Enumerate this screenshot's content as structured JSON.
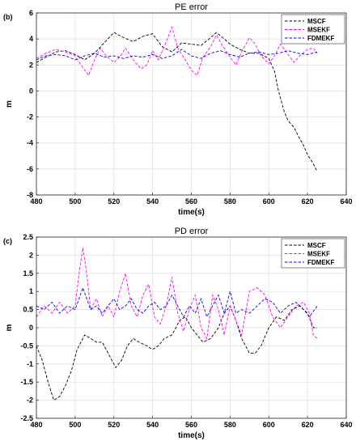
{
  "chart_data": [
    {
      "type": "line",
      "panel_label": "(b)",
      "title": "PE error",
      "xlabel": "time(s)",
      "ylabel": "m",
      "xlim": [
        480,
        640
      ],
      "ylim": [
        -8,
        6
      ],
      "xticks": [
        480,
        500,
        520,
        540,
        560,
        580,
        600,
        620,
        640
      ],
      "yticks": [
        -8,
        -6,
        -4,
        -2,
        0,
        2,
        4,
        6
      ],
      "grid": true,
      "legend_position": "top-right",
      "series": [
        {
          "name": "MSCF",
          "color": "#000000",
          "x": [
            480,
            485,
            490,
            495,
            500,
            505,
            510,
            515,
            520,
            525,
            530,
            535,
            540,
            545,
            550,
            555,
            560,
            565,
            570,
            573,
            577,
            580,
            585,
            590,
            595,
            600,
            603,
            605,
            608,
            610,
            613,
            615,
            618,
            620,
            623,
            625
          ],
          "y": [
            2.2,
            2.6,
            3.0,
            3.1,
            2.8,
            2.4,
            2.9,
            3.7,
            4.5,
            4.1,
            3.8,
            4.2,
            4.4,
            3.4,
            3.0,
            3.7,
            3.6,
            3.5,
            4.1,
            4.5,
            4.0,
            3.6,
            3.2,
            2.9,
            2.9,
            2.5,
            1.5,
            0.0,
            -1.6,
            -2.3,
            -2.8,
            -3.4,
            -4.2,
            -4.9,
            -5.6,
            -6.2
          ]
        },
        {
          "name": "MSEKF",
          "color": "#ff00ff",
          "x": [
            480,
            485,
            490,
            495,
            500,
            503,
            507,
            510,
            513,
            516,
            520,
            523,
            526,
            530,
            534,
            537,
            540,
            543,
            546,
            550,
            553,
            556,
            560,
            563,
            566,
            570,
            573,
            576,
            580,
            583,
            586,
            590,
            593,
            596,
            600,
            603,
            606,
            610,
            613,
            616,
            620,
            623,
            625
          ],
          "y": [
            2.5,
            2.9,
            3.2,
            3.0,
            2.7,
            2.0,
            1.2,
            2.4,
            3.3,
            2.7,
            2.2,
            2.6,
            3.3,
            2.4,
            1.7,
            2.0,
            3.1,
            2.4,
            3.4,
            4.9,
            3.3,
            2.6,
            1.6,
            1.2,
            2.6,
            3.4,
            4.3,
            3.5,
            2.6,
            2.0,
            3.0,
            4.1,
            3.6,
            2.7,
            2.1,
            2.7,
            3.6,
            2.8,
            2.2,
            2.7,
            3.2,
            3.3,
            2.9
          ]
        },
        {
          "name": "FDMEKF",
          "color": "#0000ff",
          "x": [
            480,
            485,
            490,
            495,
            500,
            505,
            510,
            515,
            520,
            525,
            530,
            535,
            540,
            545,
            550,
            555,
            560,
            565,
            570,
            575,
            580,
            585,
            590,
            595,
            600,
            605,
            610,
            615,
            620,
            625
          ],
          "y": [
            2.4,
            2.7,
            2.8,
            2.7,
            2.4,
            2.7,
            2.9,
            2.6,
            2.7,
            2.5,
            2.7,
            2.6,
            2.8,
            2.5,
            2.7,
            3.2,
            2.7,
            2.5,
            2.9,
            3.1,
            2.8,
            2.6,
            2.9,
            3.0,
            2.8,
            2.9,
            3.1,
            2.9,
            2.8,
            3.0
          ]
        }
      ]
    },
    {
      "type": "line",
      "panel_label": "(c)",
      "title": "PD error",
      "xlabel": "time(s)",
      "ylabel": "m",
      "xlim": [
        480,
        640
      ],
      "ylim": [
        -2.5,
        2.5
      ],
      "xticks": [
        480,
        500,
        520,
        540,
        560,
        580,
        600,
        620,
        640
      ],
      "yticks": [
        -2.5,
        -2,
        -1.5,
        -1,
        -0.5,
        0,
        0.5,
        1,
        1.5,
        2,
        2.5
      ],
      "grid": true,
      "legend_position": "top-right",
      "series": [
        {
          "name": "MSCF",
          "color": "#000000",
          "x": [
            480,
            483,
            486,
            489,
            492,
            495,
            498,
            501,
            505,
            508,
            511,
            514,
            517,
            521,
            524,
            527,
            530,
            533,
            537,
            540,
            543,
            546,
            550,
            554,
            557,
            560,
            563,
            566,
            570,
            574,
            577,
            580,
            583,
            586,
            590,
            593,
            596,
            600,
            604,
            608,
            612,
            616,
            620,
            623,
            625
          ],
          "y": [
            -0.5,
            -0.9,
            -1.5,
            -2.0,
            -1.9,
            -1.6,
            -1.2,
            -0.6,
            -0.2,
            -0.3,
            -0.4,
            -0.4,
            -0.7,
            -1.1,
            -0.9,
            -0.5,
            -0.3,
            -0.4,
            -0.5,
            -0.6,
            -0.5,
            -0.3,
            -0.2,
            0.2,
            0.3,
            0.0,
            -0.2,
            -0.4,
            -0.3,
            0.0,
            0.4,
            0.6,
            0.2,
            -0.3,
            -0.7,
            -0.7,
            -0.5,
            0.0,
            0.3,
            0.2,
            0.5,
            0.6,
            0.4,
            0.0,
            0.0
          ]
        },
        {
          "name": "MSEKF",
          "color": "#ff00ff",
          "x": [
            480,
            484,
            488,
            492,
            496,
            500,
            502,
            504,
            506,
            508,
            511,
            514,
            517,
            520,
            523,
            526,
            529,
            532,
            535,
            538,
            541,
            544,
            547,
            550,
            553,
            556,
            559,
            562,
            565,
            568,
            571,
            574,
            577,
            580,
            583,
            586,
            590,
            594,
            598,
            602,
            606,
            610,
            614,
            618,
            621,
            623,
            625
          ],
          "y": [
            0.3,
            0.6,
            0.4,
            0.7,
            0.4,
            0.6,
            1.5,
            2.2,
            1.5,
            0.5,
            0.8,
            0.3,
            0.6,
            0.3,
            1.0,
            1.5,
            0.6,
            0.3,
            0.9,
            1.2,
            0.3,
            0.1,
            0.6,
            1.4,
            0.4,
            -0.1,
            0.5,
            0.9,
            0.0,
            -0.3,
            0.9,
            0.5,
            -0.2,
            0.6,
            0.2,
            -0.2,
            1.0,
            1.1,
            0.9,
            0.3,
            0.0,
            0.3,
            0.6,
            0.7,
            0.4,
            -0.2,
            -0.3
          ]
        },
        {
          "name": "FDMEKF",
          "color": "#0000ff",
          "x": [
            480,
            484,
            488,
            492,
            496,
            500,
            502,
            504,
            506,
            508,
            511,
            514,
            517,
            520,
            523,
            526,
            529,
            532,
            535,
            538,
            541,
            544,
            547,
            550,
            553,
            556,
            559,
            562,
            565,
            568,
            571,
            574,
            577,
            580,
            583,
            586,
            590,
            594,
            598,
            602,
            606,
            610,
            614,
            618,
            621,
            625
          ],
          "y": [
            0.6,
            0.5,
            0.7,
            0.4,
            0.6,
            0.5,
            0.8,
            1.1,
            0.8,
            0.5,
            0.6,
            0.4,
            0.6,
            0.8,
            0.5,
            0.6,
            0.8,
            0.5,
            0.4,
            0.6,
            0.7,
            0.5,
            0.6,
            0.9,
            0.6,
            0.3,
            0.6,
            0.4,
            0.8,
            0.3,
            0.6,
            0.9,
            0.4,
            1.0,
            0.4,
            0.5,
            0.4,
            0.6,
            0.8,
            0.7,
            0.4,
            0.6,
            0.7,
            0.5,
            0.3,
            0.6
          ]
        }
      ]
    }
  ]
}
